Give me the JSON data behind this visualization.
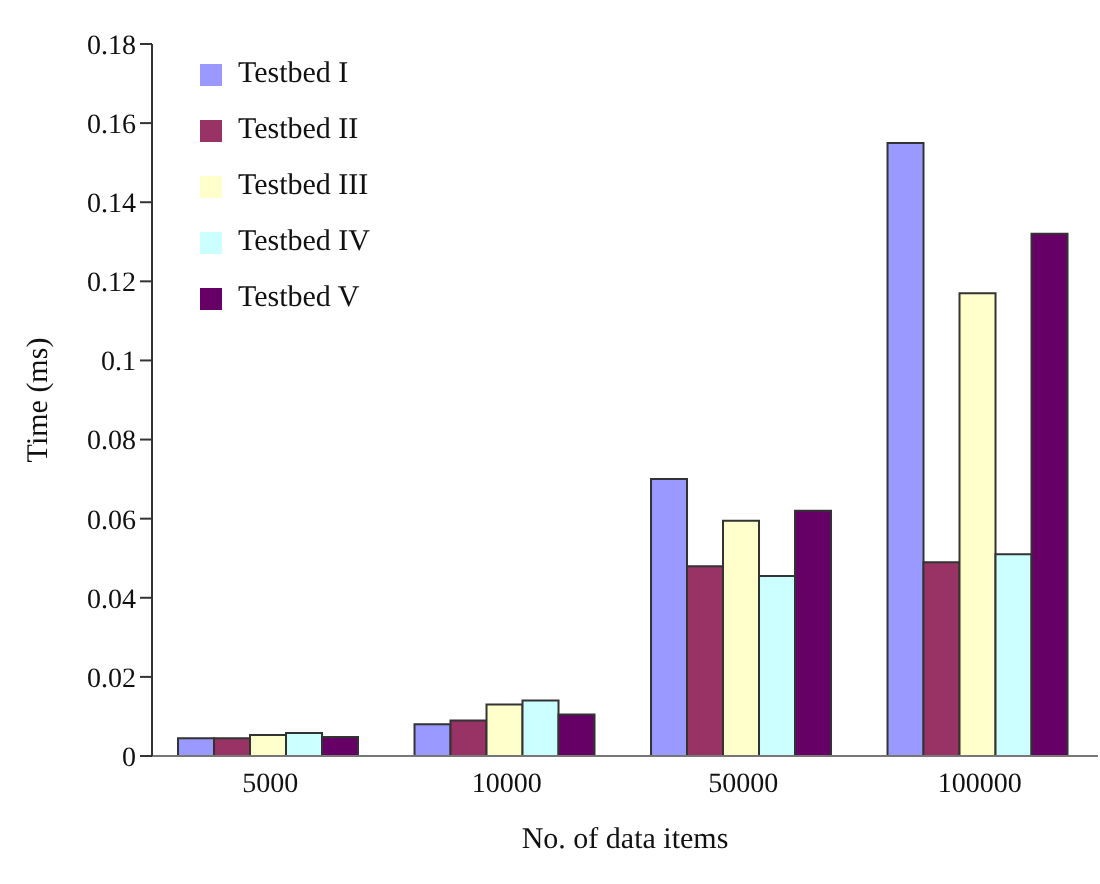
{
  "chart_data": {
    "type": "bar",
    "xlabel": "No. of data items",
    "ylabel": "Time (ms)",
    "categories": [
      "5000",
      "10000",
      "50000",
      "100000"
    ],
    "series": [
      {
        "name": "Testbed I",
        "color": "#9999ff",
        "values": [
          0.0045,
          0.008,
          0.07,
          0.155
        ]
      },
      {
        "name": "Testbed II",
        "color": "#993366",
        "values": [
          0.0045,
          0.009,
          0.048,
          0.049
        ]
      },
      {
        "name": "Testbed III",
        "color": "#ffffcc",
        "values": [
          0.0053,
          0.013,
          0.0595,
          0.117
        ]
      },
      {
        "name": "Testbed IV",
        "color": "#ccffff",
        "values": [
          0.0058,
          0.014,
          0.0455,
          0.051
        ]
      },
      {
        "name": "Testbed V",
        "color": "#660066",
        "values": [
          0.0048,
          0.0105,
          0.062,
          0.132
        ]
      }
    ],
    "ylim": [
      0,
      0.18
    ],
    "yticks": [
      0,
      0.02,
      0.04,
      0.06,
      0.08,
      0.1,
      0.12,
      0.14,
      0.16,
      0.18
    ],
    "grid": false,
    "legend": "top left"
  }
}
